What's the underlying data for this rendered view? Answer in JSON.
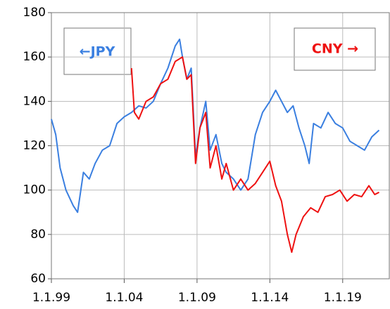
{
  "chart_data": {
    "type": "line",
    "xlim": [
      1999,
      2022.2
    ],
    "xticks": [
      {
        "value": 1999,
        "label": "1.1.99"
      },
      {
        "value": 2004,
        "label": "1.1.04"
      },
      {
        "value": 2009,
        "label": "1.1.09"
      },
      {
        "value": 2014,
        "label": "1.1.14"
      },
      {
        "value": 2019,
        "label": "1.1.19"
      }
    ],
    "ylim": [
      60,
      180
    ],
    "yticks": [
      60,
      80,
      100,
      120,
      140,
      160,
      180
    ],
    "grid": true,
    "series": [
      {
        "name": "←JPY",
        "color": "#3a7fe0",
        "x": [
          1999.0,
          1999.3,
          1999.6,
          2000.0,
          2000.5,
          2000.8,
          2001.2,
          2001.6,
          2002.0,
          2002.5,
          2003.0,
          2003.5,
          2004.0,
          2004.5,
          2005.0,
          2005.5,
          2006.0,
          2006.5,
          2007.0,
          2007.5,
          2007.8,
          2008.0,
          2008.3,
          2008.6,
          2008.9,
          2009.2,
          2009.6,
          2009.9,
          2010.3,
          2010.7,
          2011.0,
          2011.5,
          2012.0,
          2012.5,
          2013.0,
          2013.5,
          2014.0,
          2014.4,
          2014.8,
          2015.2,
          2015.6,
          2016.0,
          2016.4,
          2016.7,
          2017.0,
          2017.5,
          2018.0,
          2018.5,
          2019.0,
          2019.5,
          2020.0,
          2020.5,
          2021.0,
          2021.5
        ],
        "values": [
          132,
          125,
          110,
          100,
          93,
          90,
          108,
          105,
          112,
          118,
          120,
          130,
          133,
          135,
          138,
          137,
          140,
          148,
          155,
          165,
          168,
          160,
          150,
          155,
          115,
          128,
          140,
          118,
          125,
          112,
          108,
          105,
          100,
          105,
          125,
          135,
          140,
          145,
          140,
          135,
          138,
          128,
          120,
          112,
          130,
          128,
          135,
          130,
          128,
          122,
          120,
          118,
          124,
          127
        ]
      },
      {
        "name": "CNY →",
        "color": "#ee1111",
        "x": [
          2004.5,
          2004.7,
          2005.0,
          2005.5,
          2006.0,
          2006.5,
          2007.0,
          2007.5,
          2008.0,
          2008.3,
          2008.6,
          2008.9,
          2009.2,
          2009.6,
          2009.9,
          2010.3,
          2010.7,
          2011.0,
          2011.5,
          2012.0,
          2012.5,
          2013.0,
          2013.5,
          2014.0,
          2014.4,
          2014.8,
          2015.2,
          2015.5,
          2015.8,
          2016.3,
          2016.8,
          2017.3,
          2017.8,
          2018.3,
          2018.8,
          2019.3,
          2019.8,
          2020.3,
          2020.8,
          2021.2,
          2021.5
        ],
        "values": [
          155,
          135,
          132,
          140,
          142,
          148,
          150,
          158,
          160,
          150,
          152,
          112,
          128,
          135,
          110,
          120,
          105,
          112,
          100,
          105,
          100,
          103,
          108,
          113,
          102,
          95,
          80,
          72,
          80,
          88,
          92,
          90,
          97,
          98,
          100,
          95,
          98,
          97,
          102,
          98,
          99
        ]
      }
    ]
  }
}
